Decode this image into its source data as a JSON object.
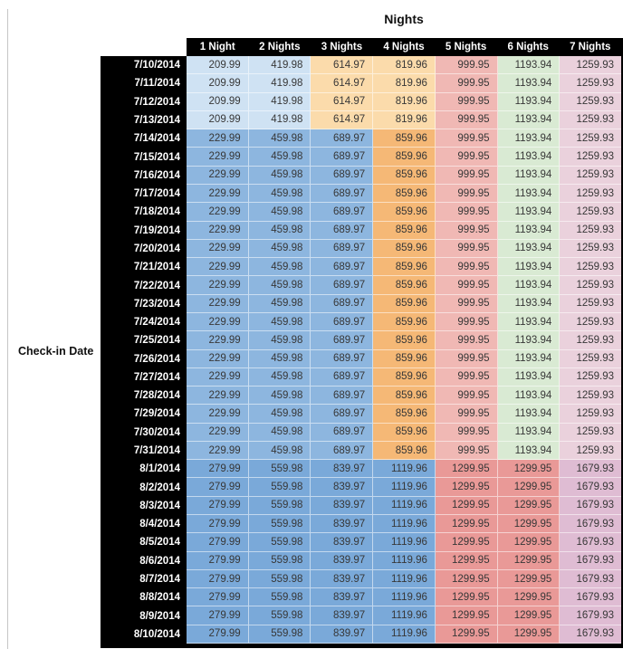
{
  "chart_data": {
    "type": "table",
    "title": "Nights",
    "row_axis_label": "Check-in Date",
    "columns": [
      "1 Night",
      "2 Nights",
      "3 Nights",
      "4 Nights",
      "5 Nights",
      "6 Nights",
      "7 Nights"
    ],
    "row_groups": [
      {
        "dates": [
          "7/10/2014",
          "7/11/2014",
          "7/12/2014",
          "7/13/2014"
        ],
        "values": [
          209.99,
          419.98,
          614.97,
          819.96,
          999.95,
          1193.94,
          1259.93
        ],
        "cell_colors": [
          "#cfe2f3",
          "#cfe2f3",
          "#fbdbab",
          "#fbdbab",
          "#f0b8b4",
          "#d9ead3",
          "#ead1dc"
        ]
      },
      {
        "dates": [
          "7/14/2014",
          "7/15/2014",
          "7/16/2014",
          "7/17/2014",
          "7/18/2014",
          "7/19/2014",
          "7/20/2014",
          "7/21/2014",
          "7/22/2014",
          "7/23/2014",
          "7/24/2014",
          "7/25/2014",
          "7/26/2014",
          "7/27/2014",
          "7/28/2014",
          "7/29/2014",
          "7/30/2014",
          "7/31/2014"
        ],
        "values": [
          229.99,
          459.98,
          689.97,
          859.96,
          999.95,
          1193.94,
          1259.93
        ],
        "cell_colors": [
          "#8db6df",
          "#8db6df",
          "#8db6df",
          "#f5b876",
          "#f0b8b4",
          "#d9ead3",
          "#ead1dc"
        ]
      },
      {
        "dates": [
          "8/1/2014",
          "8/2/2014",
          "8/3/2014",
          "8/4/2014",
          "8/5/2014",
          "8/6/2014",
          "8/7/2014",
          "8/8/2014",
          "8/9/2014",
          "8/10/2014"
        ],
        "values": [
          279.99,
          559.98,
          839.97,
          1119.96,
          1299.95,
          1299.95,
          1679.93
        ],
        "cell_colors": [
          "#7aa9d9",
          "#7aa9d9",
          "#7aa9d9",
          "#7aa9d9",
          "#e99997",
          "#e99997",
          "#dfbcd3"
        ]
      }
    ],
    "layout": {
      "legend": "none",
      "grid": "on",
      "header_position": "top",
      "row_label_position": "left"
    }
  },
  "styles": {
    "header_bg": "#000000",
    "header_text": "#ffffff",
    "date_column_bg": "#000000",
    "date_text": "#ffffff",
    "cell_text": "#373737",
    "table_border": "#000000",
    "gridline": "rgba(255,255,255,0.55)",
    "gutter_line": "#c6c6c6",
    "page_bg": "#ffffff"
  }
}
